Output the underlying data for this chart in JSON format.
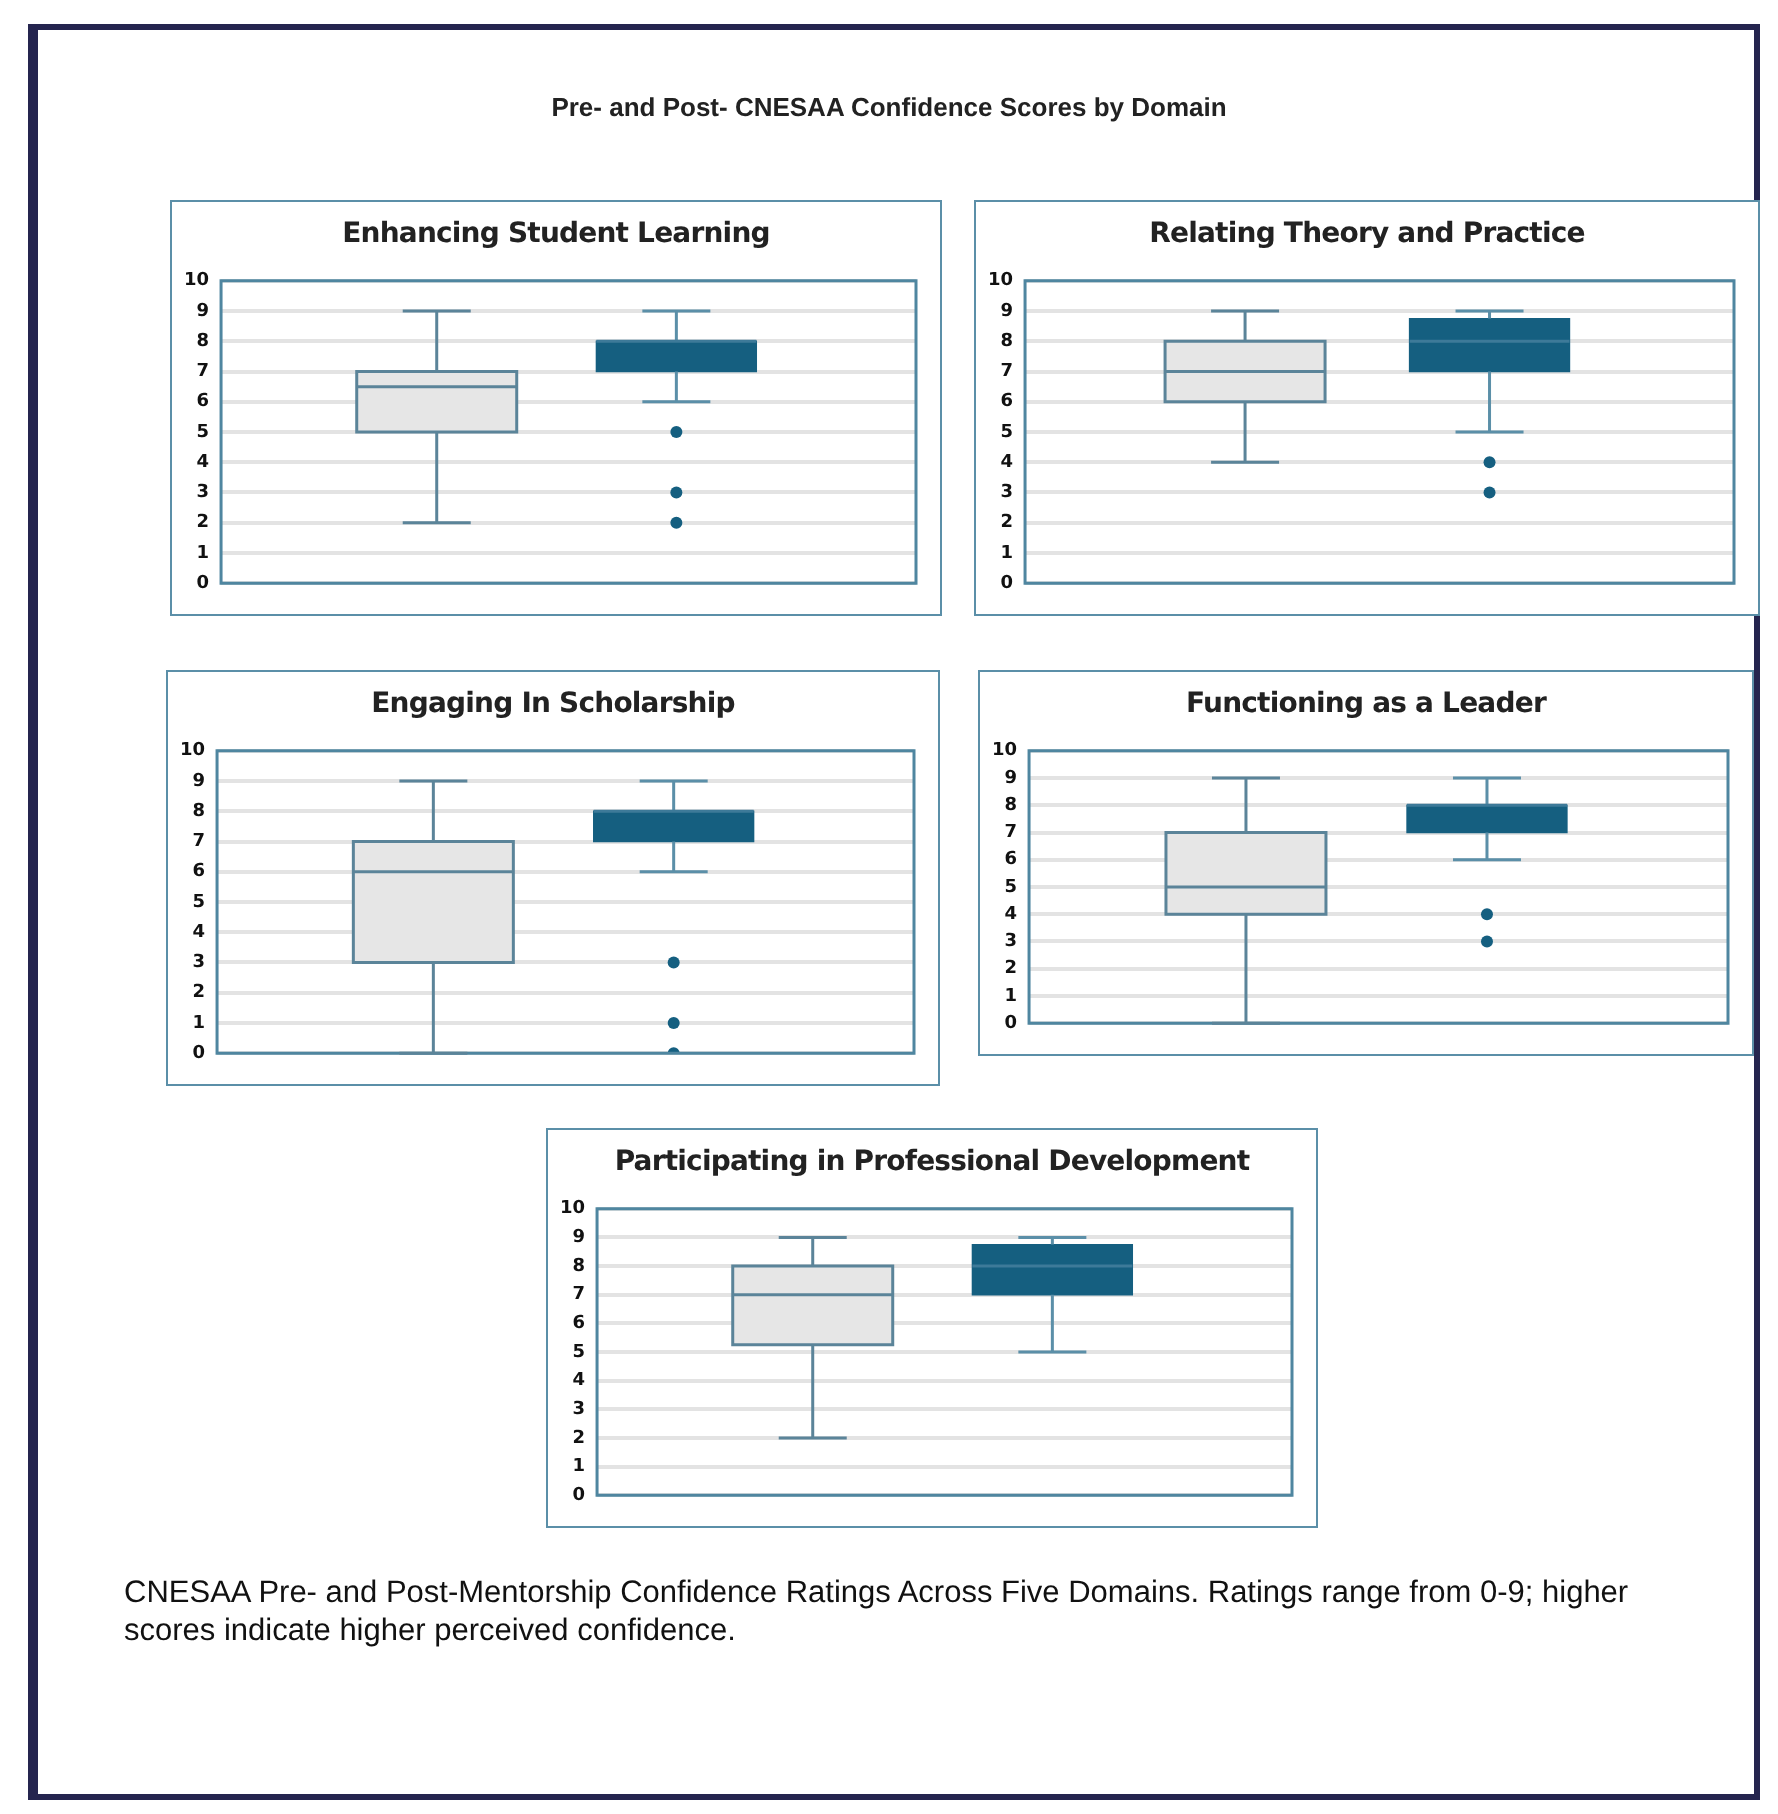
{
  "chart_data": [
    {
      "type": "other",
      "title": "Pre- and Post- CNESAA Confidence Scores by Domain"
    },
    {
      "type": "box",
      "title": "Enhancing Student Learning",
      "categories": [
        null,
        null
      ],
      "colors": [
        "#e6e6e6",
        "#155f80"
      ],
      "ylim": [
        0,
        10
      ],
      "yticks": [
        0,
        1,
        2,
        3,
        4,
        5,
        6,
        7,
        8,
        9,
        10
      ],
      "grid": "y",
      "legend": false,
      "tick_labels": "y",
      "boxes": [
        {
          "low": 2,
          "q1": 5,
          "median": 6.5,
          "q3": 7,
          "high": 9
        },
        {
          "low": 6,
          "q1": 7,
          "median": 8,
          "q3": 8,
          "high": 9,
          "outliers": [
            5,
            3,
            2
          ]
        }
      ]
    },
    {
      "type": "box",
      "title": "Relating Theory and Practice",
      "categories": [
        null,
        null
      ],
      "colors": [
        "#e6e6e6",
        "#155f80"
      ],
      "ylim": [
        0,
        10
      ],
      "yticks": [
        0,
        1,
        2,
        3,
        4,
        5,
        6,
        7,
        8,
        9,
        10
      ],
      "grid": "y",
      "legend": false,
      "tick_labels": "y",
      "boxes": [
        {
          "low": 4,
          "q1": 6,
          "median": 7,
          "q3": 8,
          "high": 9
        },
        {
          "low": 5,
          "q1": 7,
          "median": 8,
          "q3": 8.75,
          "high": 9,
          "outliers": [
            4,
            3
          ]
        }
      ]
    },
    {
      "type": "box",
      "title": "Engaging In Scholarship",
      "categories": [
        null,
        null
      ],
      "colors": [
        "#e6e6e6",
        "#155f80"
      ],
      "ylim": [
        0,
        10
      ],
      "yticks": [
        0,
        1,
        2,
        3,
        4,
        5,
        6,
        7,
        8,
        9,
        10
      ],
      "grid": "y",
      "legend": false,
      "tick_labels": "y",
      "boxes": [
        {
          "low": 0,
          "q1": 3,
          "median": 6,
          "q3": 7,
          "high": 9
        },
        {
          "low": 6,
          "q1": 7,
          "median": 8,
          "q3": 8,
          "high": 9,
          "outliers": [
            3,
            1,
            0
          ]
        }
      ]
    },
    {
      "type": "box",
      "title": "Functioning as a Leader",
      "categories": [
        null,
        null
      ],
      "colors": [
        "#e6e6e6",
        "#155f80"
      ],
      "ylim": [
        0,
        10
      ],
      "yticks": [
        0,
        1,
        2,
        3,
        4,
        5,
        6,
        7,
        8,
        9,
        10
      ],
      "grid": "y",
      "legend": false,
      "tick_labels": "y",
      "boxes": [
        {
          "low": 0,
          "q1": 4,
          "median": 5,
          "q3": 7,
          "high": 9
        },
        {
          "low": 6,
          "q1": 7,
          "median": 8,
          "q3": 8,
          "high": 9,
          "outliers": [
            4,
            3
          ]
        }
      ]
    },
    {
      "type": "box",
      "title": "Participating in Professional Development",
      "categories": [
        null,
        null
      ],
      "colors": [
        "#e6e6e6",
        "#155f80"
      ],
      "ylim": [
        0,
        10
      ],
      "yticks": [
        0,
        1,
        2,
        3,
        4,
        5,
        6,
        7,
        8,
        9,
        10
      ],
      "grid": "y",
      "legend": false,
      "tick_labels": "y",
      "boxes": [
        {
          "low": 2,
          "q1": 5.25,
          "median": 7,
          "q3": 8,
          "high": 9
        },
        {
          "low": 5,
          "q1": 7,
          "median": 8,
          "q3": 8.75,
          "high": 9
        }
      ]
    },
    {
      "type": "other",
      "annotations": [
        "CNESAA Pre- and Post-Mentorship Confidence Ratings Across Five Domains. Ratings range from 0-9; higher scores indicate higher perceived confidence."
      ]
    }
  ]
}
